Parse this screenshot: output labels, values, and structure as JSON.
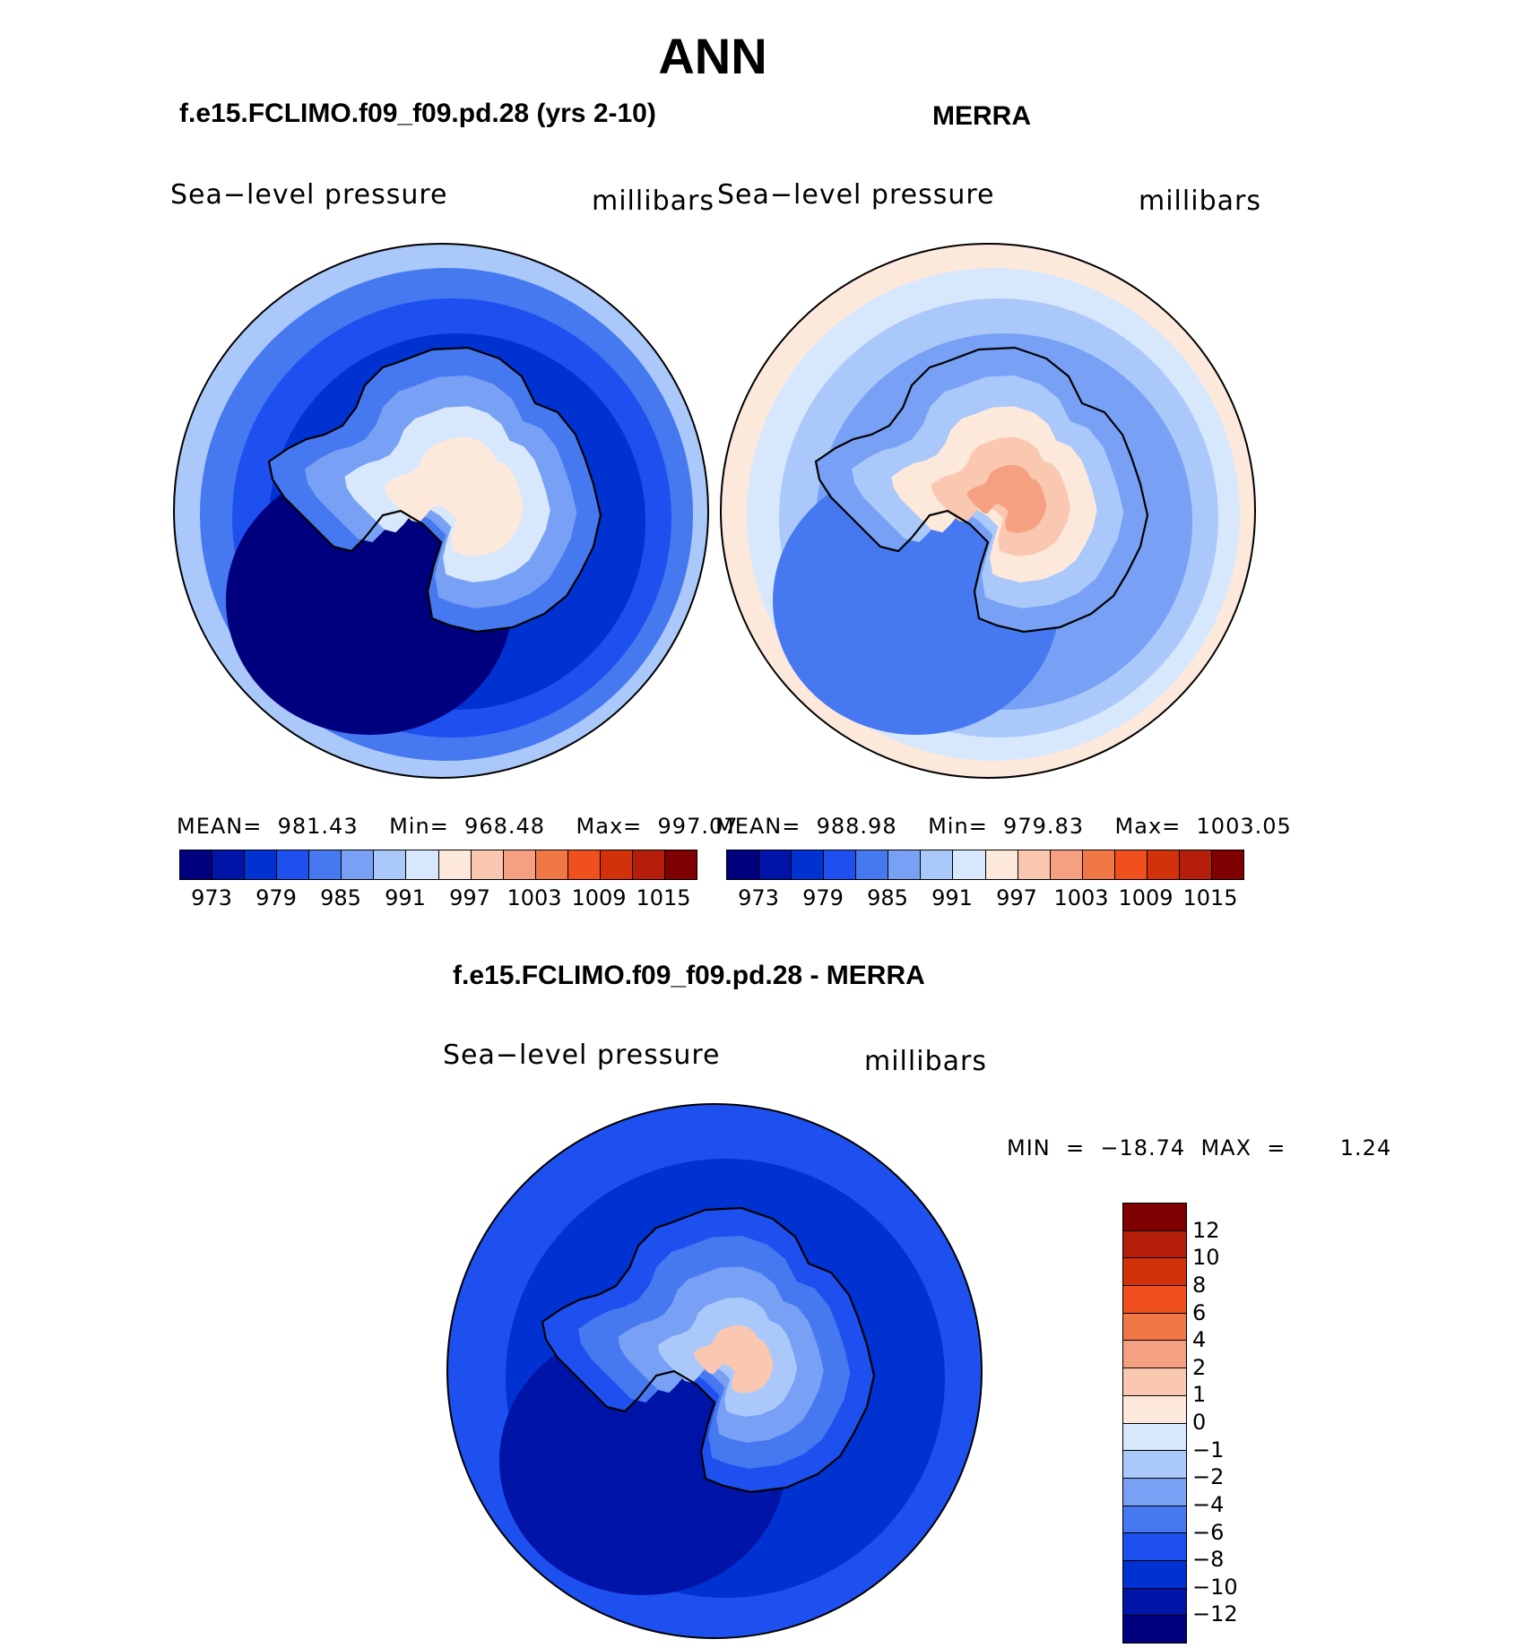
{
  "figure": {
    "title": "ANN",
    "panels": [
      {
        "case": "f.e15.FCLIMO.f09_f09.pd.28 (yrs 2-10)",
        "variable": "Sea−level pressure",
        "units": "millibars",
        "stats": "MEAN=  981.43    Min=  968.48    Max=  997.07",
        "colorbar_ticks": [
          "973",
          "979",
          "985",
          "991",
          "997",
          "1003",
          "1009",
          "1015"
        ]
      },
      {
        "case": "MERRA",
        "variable": "Sea−level pressure",
        "units": "millibars",
        "stats": "MEAN=  988.98    Min=  979.83    Max=  1003.05",
        "colorbar_ticks": [
          "973",
          "979",
          "985",
          "991",
          "997",
          "1003",
          "1009",
          "1015"
        ]
      }
    ],
    "difference": {
      "case": "f.e15.FCLIMO.f09_f09.pd.28 - MERRA",
      "variable": "Sea−level pressure",
      "units": "millibars",
      "minmax": "MIN  =  −18.74  MAX  =       1.24",
      "colorbar_ticks": [
        "12",
        "10",
        "8",
        "6",
        "4",
        "2",
        "1",
        "0",
        "−1",
        "−2",
        "−4",
        "−6",
        "−8",
        "−10",
        "−12"
      ]
    }
  },
  "colors": {
    "field_scale": [
      "#00007f",
      "#0014a8",
      "#0032d2",
      "#1e50f0",
      "#4678f0",
      "#78a0f5",
      "#aac8fa",
      "#d8e8fc",
      "#fde8dc",
      "#fac8b0",
      "#f5a080",
      "#f07846",
      "#f0501e",
      "#d2320a",
      "#b41e0a",
      "#7f0000"
    ],
    "diff_scale": [
      "#7f0000",
      "#b41e0a",
      "#d2320a",
      "#f0501e",
      "#f07846",
      "#f5a080",
      "#fac8b0",
      "#fde8dc",
      "#d8e8fc",
      "#aac8fa",
      "#78a0f5",
      "#4678f0",
      "#1e50f0",
      "#0032d2",
      "#0014a8",
      "#00007f"
    ]
  },
  "maps": [
    {
      "rings": [
        "#aac8fa",
        "#4678f0",
        "#1e50f0",
        "#0032d2"
      ],
      "low": "#00007f",
      "land": [
        "#4678f0",
        "#78a0f5",
        "#d8e8fc",
        "#fde8dc"
      ]
    },
    {
      "rings": [
        "#fde8dc",
        "#d8e8fc",
        "#aac8fa",
        "#78a0f5"
      ],
      "low": "#4678f0",
      "land": [
        "#78a0f5",
        "#aac8fa",
        "#fde8dc",
        "#fac8b0",
        "#f5a080"
      ]
    },
    {
      "rings": [
        "#1e50f0",
        "#1e50f0",
        "#0032d2",
        "#0032d2"
      ],
      "low": "#0014a8",
      "land": [
        "#1e50f0",
        "#4678f0",
        "#78a0f5",
        "#aac8fa",
        "#fac8b0"
      ]
    }
  ]
}
